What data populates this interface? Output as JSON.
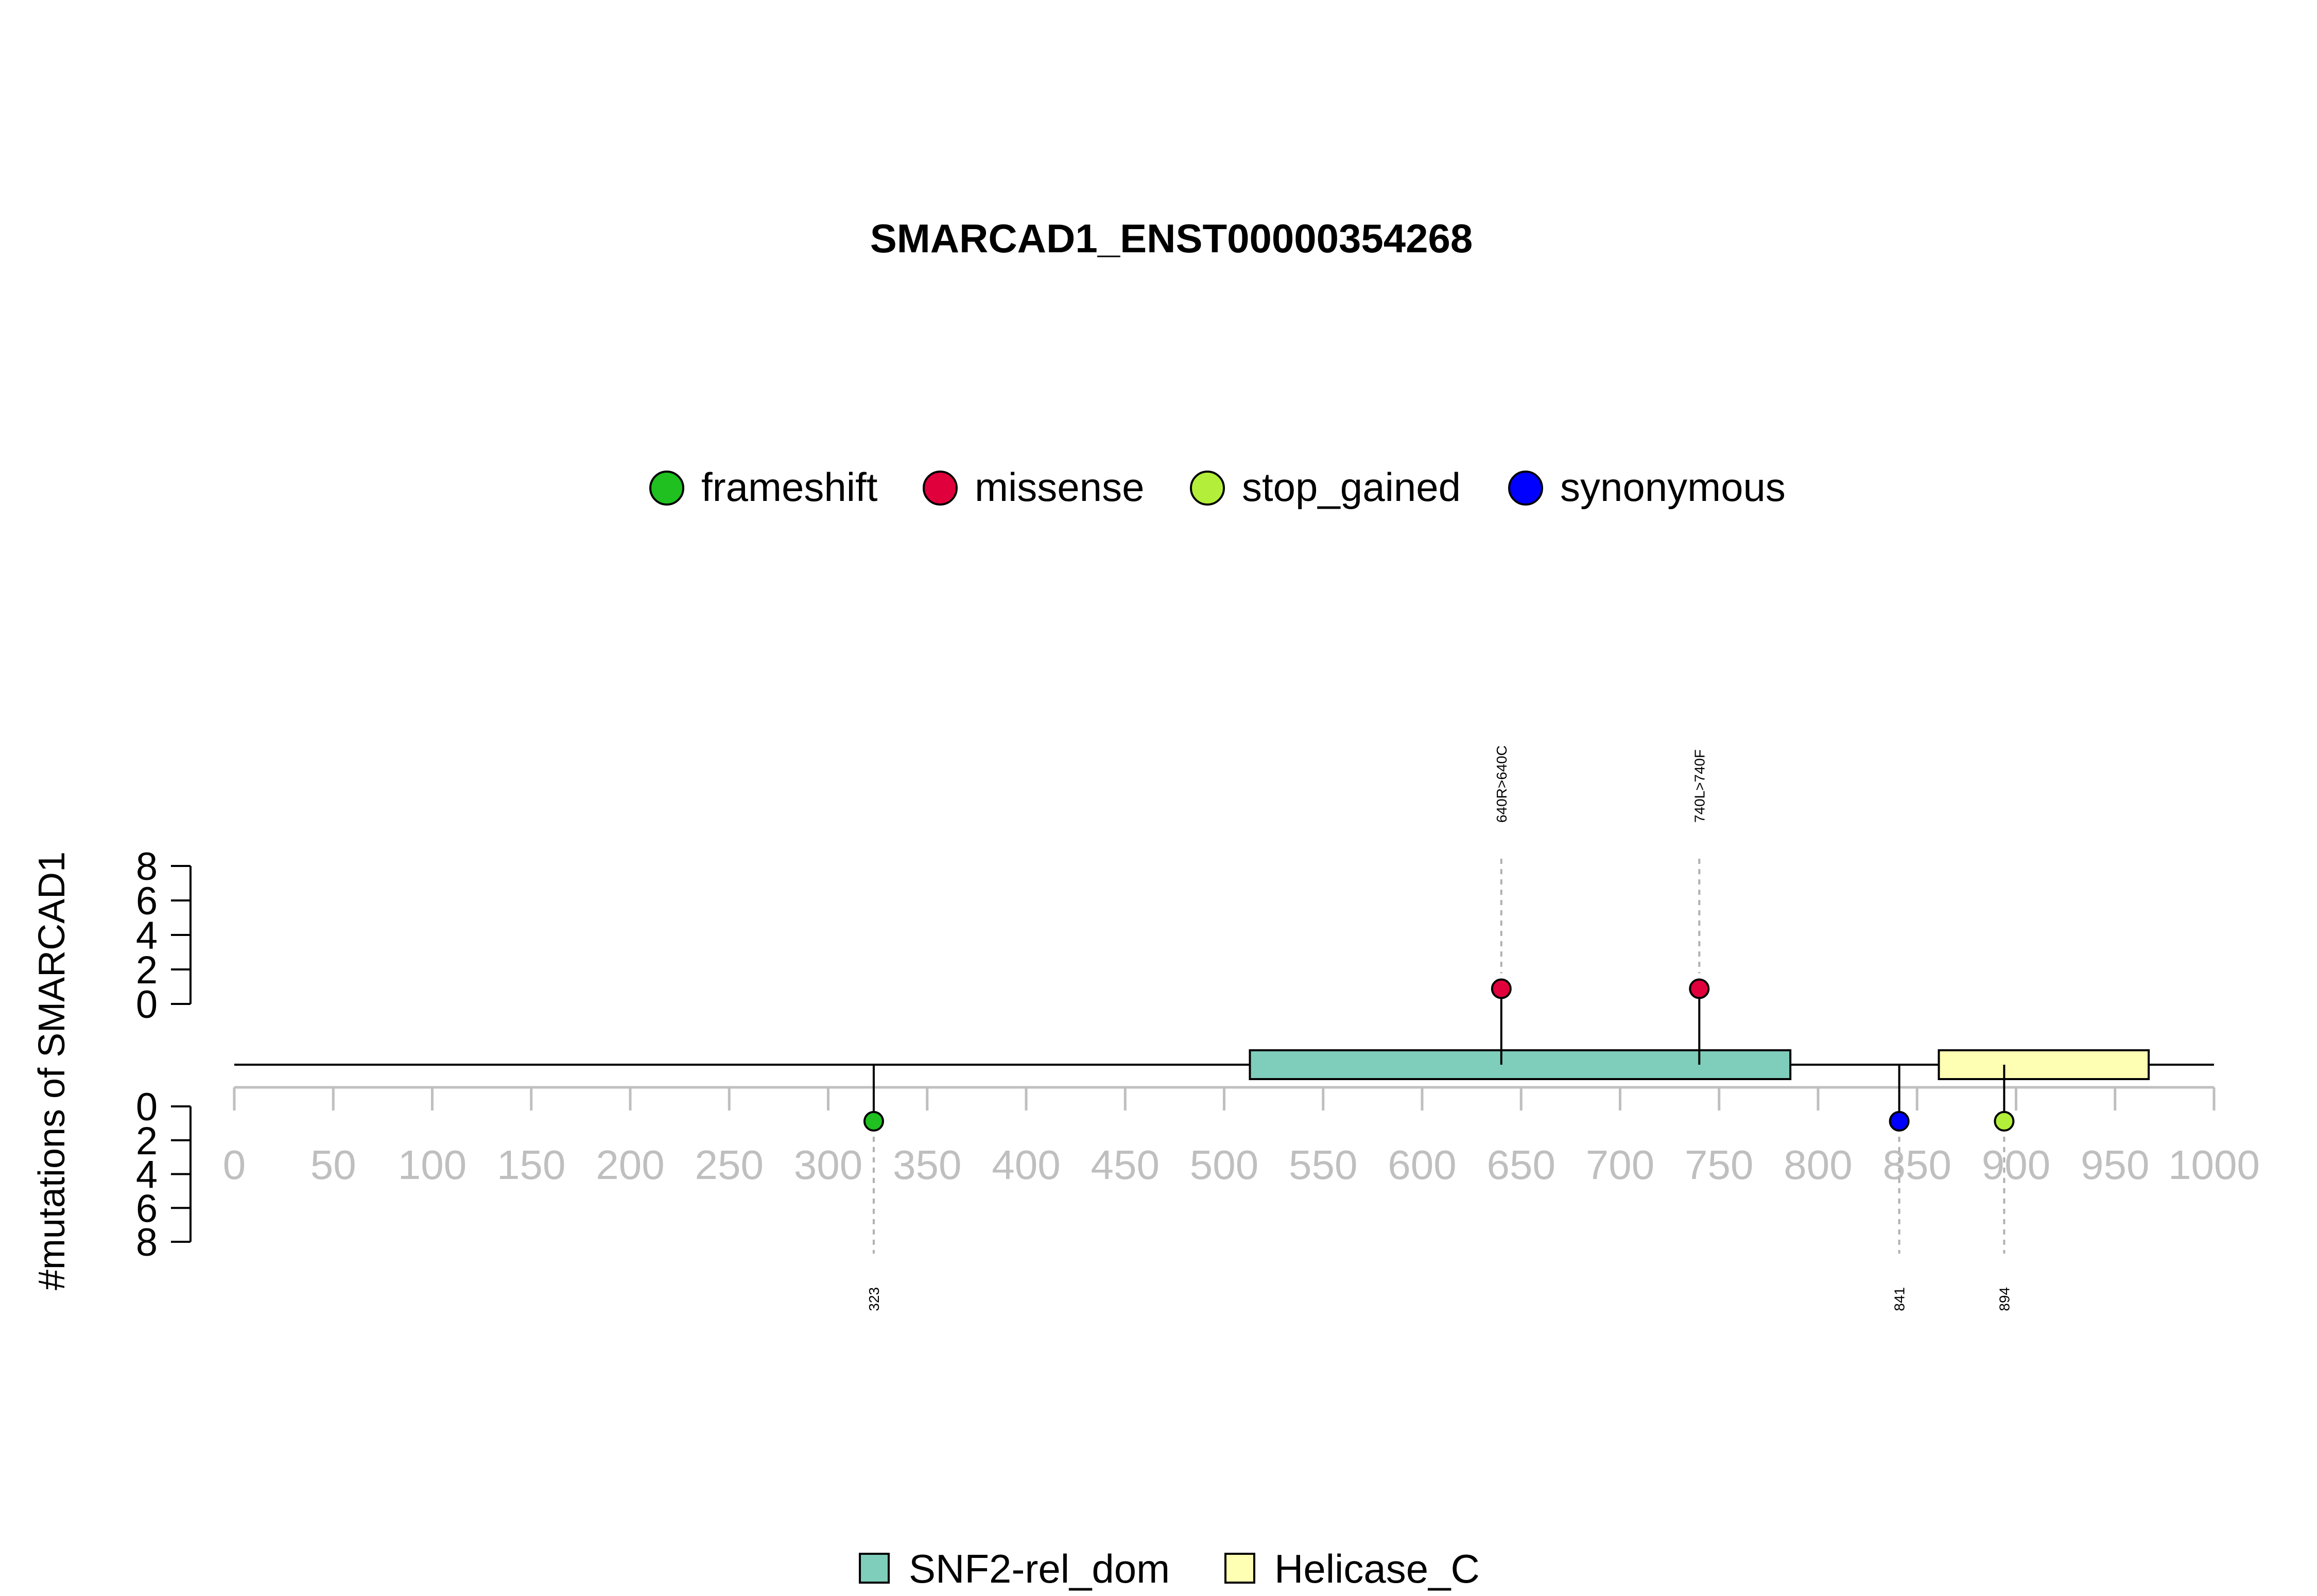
{
  "chart_data": {
    "type": "lollipop",
    "title": "SMARCAD1_ENST00000354268",
    "ylabel": "#mutations of SMARCAD1",
    "xlim": [
      0,
      1000
    ],
    "x_ticks": [
      0,
      50,
      100,
      150,
      200,
      250,
      300,
      350,
      400,
      450,
      500,
      550,
      600,
      650,
      700,
      750,
      800,
      850,
      900,
      950,
      1000
    ],
    "ylim": [
      0,
      8
    ],
    "y_ticks_upper": [
      0,
      2,
      4,
      6,
      8
    ],
    "y_ticks_lower": [
      0,
      2,
      4,
      6,
      8
    ],
    "legend_mutation_types": [
      {
        "name": "frameshift",
        "color": "#1fc01f"
      },
      {
        "name": "missense",
        "color": "#e0003c"
      },
      {
        "name": "stop_gained",
        "color": "#b3ee3a"
      },
      {
        "name": "synonymous",
        "color": "#0000ff"
      }
    ],
    "domains": [
      {
        "name": "SNF2-rel_dom",
        "start": 513,
        "end": 786,
        "color": "#7fcdbb"
      },
      {
        "name": "Helicase_C",
        "start": 861,
        "end": 967,
        "color": "#ffffb3"
      }
    ],
    "mutations_upper": [
      {
        "position": 640,
        "label": "640R>640C",
        "type": "missense",
        "count": 1,
        "color": "#e0003c"
      },
      {
        "position": 740,
        "label": "740L>740F",
        "type": "missense",
        "count": 1,
        "color": "#e0003c"
      }
    ],
    "mutations_lower": [
      {
        "position": 323,
        "label": "323",
        "type": "frameshift",
        "count": 1,
        "color": "#1fc01f"
      },
      {
        "position": 841,
        "label": "841",
        "type": "synonymous",
        "count": 1,
        "color": "#0000ff"
      },
      {
        "position": 894,
        "label": "894",
        "type": "stop_gained",
        "count": 1,
        "color": "#b3ee3a"
      }
    ]
  }
}
